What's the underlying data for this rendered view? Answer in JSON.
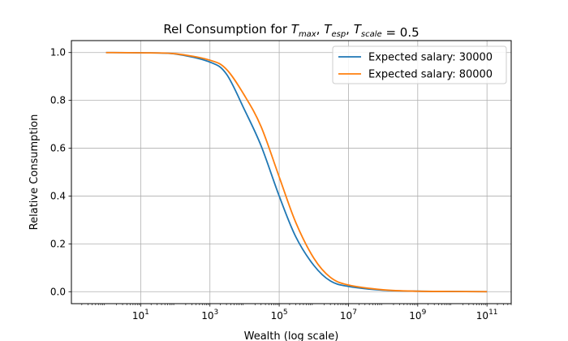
{
  "chart_data": {
    "type": "line",
    "title_main": "Rel Consumption for ",
    "title_parts": [
      {
        "base": "T",
        "sub": "max",
        "sep": ", "
      },
      {
        "base": "T",
        "sub": "esp",
        "sep": ", "
      },
      {
        "base": "T",
        "sub": "scale",
        "sep": ""
      }
    ],
    "title_tail": " = 0.5",
    "xlabel": "Wealth (log scale)",
    "ylabel": "Relative Consumption",
    "x_scale": "log",
    "xlim": [
      0.1,
      500000000000.0
    ],
    "ylim": [
      -0.05,
      1.05
    ],
    "x_ticks": [
      {
        "value": 10,
        "base": "10",
        "exp": "1"
      },
      {
        "value": 1000,
        "base": "10",
        "exp": "3"
      },
      {
        "value": 100000,
        "base": "10",
        "exp": "5"
      },
      {
        "value": 10000000,
        "base": "10",
        "exp": "7"
      },
      {
        "value": 1000000000,
        "base": "10",
        "exp": "9"
      },
      {
        "value": 100000000000,
        "base": "10",
        "exp": "11"
      }
    ],
    "y_ticks": [
      {
        "value": 0.0,
        "label": "0.0"
      },
      {
        "value": 0.2,
        "label": "0.2"
      },
      {
        "value": 0.4,
        "label": "0.4"
      },
      {
        "value": 0.6,
        "label": "0.6"
      },
      {
        "value": 0.8,
        "label": "0.8"
      },
      {
        "value": 1.0,
        "label": "1.0"
      }
    ],
    "grid": true,
    "legend_position": "top-right",
    "series": [
      {
        "name": "Expected salary: 30000",
        "color": "#1f77b4",
        "x": [
          1,
          10,
          100,
          1000,
          3000,
          10000,
          30000,
          100000,
          300000,
          1000000,
          3000000,
          10000000,
          100000000,
          1000000000,
          10000000000,
          100000000000
        ],
        "y": [
          1.0,
          0.999,
          0.994,
          0.96,
          0.91,
          0.76,
          0.61,
          0.4,
          0.23,
          0.11,
          0.045,
          0.022,
          0.006,
          0.002,
          0.001,
          0.0
        ]
      },
      {
        "name": "Expected salary: 80000",
        "color": "#ff7f0e",
        "x": [
          1,
          10,
          100,
          1000,
          3000,
          10000,
          30000,
          100000,
          300000,
          1000000,
          3000000,
          10000000,
          100000000,
          1000000000,
          10000000000,
          100000000000
        ],
        "y": [
          1.0,
          0.999,
          0.995,
          0.968,
          0.93,
          0.82,
          0.69,
          0.48,
          0.29,
          0.14,
          0.06,
          0.028,
          0.008,
          0.002,
          0.001,
          0.0
        ]
      }
    ]
  }
}
